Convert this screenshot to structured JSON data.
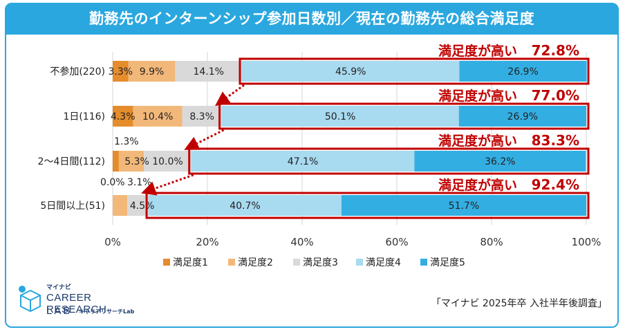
{
  "title": "勤務先のインターンシップ参加日数別／現在の勤務先の総合満足度",
  "source": "「マイナビ 2025年卒 入社半年後調査」",
  "logo": {
    "brand": "マイナビ",
    "main": "CAREER RESEARCH",
    "lab": "LAB",
    "sub": "キャリアリサーチLab"
  },
  "colors": {
    "s1": "#e58c2c",
    "s2": "#f2b87a",
    "s3": "#d9d9d9",
    "s4": "#a8daf0",
    "s5": "#33aee3",
    "highlight": "#c00000",
    "frame": "#2aa7df"
  },
  "chart_data": {
    "type": "bar",
    "orientation": "horizontal",
    "stacked": true,
    "categories": [
      "不参加(220)",
      "1日(116)",
      "2～4日間(112)",
      "5日間以上(51)"
    ],
    "series": [
      {
        "name": "満足度1",
        "values": [
          3.3,
          4.3,
          1.3,
          0.0
        ],
        "labels": [
          "3.3%",
          "4.3%",
          "1.3%",
          "0.0%"
        ]
      },
      {
        "name": "満足度2",
        "values": [
          9.9,
          10.4,
          5.3,
          3.1
        ],
        "labels": [
          "9.9%",
          "10.4%",
          "5.3%",
          "3.1%"
        ]
      },
      {
        "name": "満足度3",
        "values": [
          14.1,
          8.3,
          10.0,
          4.5
        ],
        "labels": [
          "14.1%",
          "8.3%",
          "10.0%",
          "4.5%"
        ]
      },
      {
        "name": "満足度4",
        "values": [
          45.9,
          50.1,
          47.1,
          40.7
        ],
        "labels": [
          "45.9%",
          "50.1%",
          "47.1%",
          "40.7%"
        ]
      },
      {
        "name": "満足度5",
        "values": [
          26.9,
          26.9,
          36.2,
          51.7
        ],
        "labels": [
          "26.9%",
          "26.9%",
          "36.2%",
          "51.7%"
        ]
      }
    ],
    "annotations": [
      {
        "label": "満足度が高い",
        "value": "72.8%"
      },
      {
        "label": "満足度が高い",
        "value": "77.0%"
      },
      {
        "label": "満足度が高い",
        "value": "83.3%"
      },
      {
        "label": "満足度が高い",
        "value": "92.4%"
      }
    ],
    "xlim": [
      0,
      100
    ],
    "xticks": [
      "0%",
      "20%",
      "40%",
      "60%",
      "80%",
      "100%"
    ],
    "legend": "bottom",
    "grid": true
  }
}
